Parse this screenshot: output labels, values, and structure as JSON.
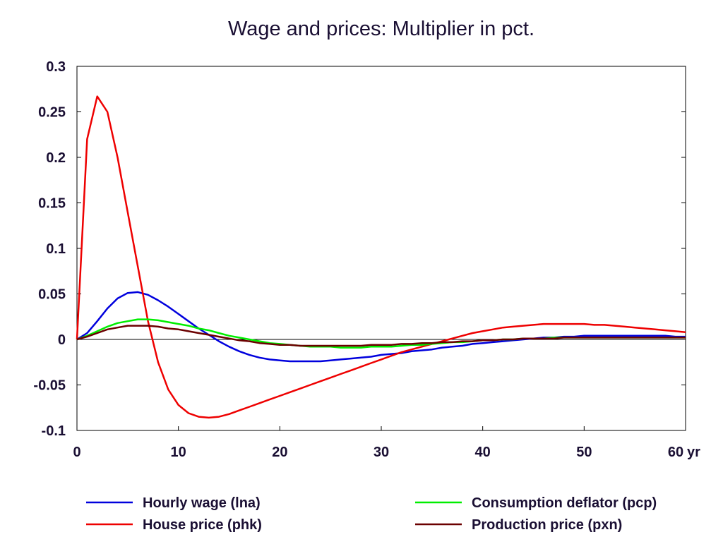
{
  "chart_data": {
    "type": "line",
    "title": "Wage and prices: Multiplier in pct.",
    "x_unit_label": "yr",
    "xlim": [
      0,
      60
    ],
    "ylim": [
      -0.1,
      0.3
    ],
    "x_ticks": [
      0,
      10,
      20,
      30,
      40,
      50,
      60
    ],
    "y_ticks": [
      -0.1,
      -0.05,
      0,
      0.05,
      0.1,
      0.15,
      0.2,
      0.25,
      0.3
    ],
    "y_tick_labels": [
      "-0.1",
      "-0.05",
      "0",
      "0.05",
      "0.1",
      "0.15",
      "0.2",
      "0.25",
      "0.3"
    ],
    "zero_line": true,
    "grid": false,
    "legend_position": "bottom",
    "x": [
      0,
      1,
      2,
      3,
      4,
      5,
      6,
      7,
      8,
      9,
      10,
      11,
      12,
      13,
      14,
      15,
      16,
      17,
      18,
      19,
      20,
      21,
      22,
      23,
      24,
      25,
      26,
      27,
      28,
      29,
      30,
      31,
      32,
      33,
      34,
      35,
      36,
      37,
      38,
      39,
      40,
      41,
      42,
      43,
      44,
      45,
      46,
      47,
      48,
      49,
      50,
      51,
      52,
      53,
      54,
      55,
      56,
      57,
      58,
      59,
      60
    ],
    "series": [
      {
        "name": "Hourly wage (lna)",
        "color": "#0000dd",
        "values": [
          0,
          0.007,
          0.02,
          0.034,
          0.045,
          0.051,
          0.052,
          0.049,
          0.043,
          0.036,
          0.028,
          0.02,
          0.012,
          0.005,
          -0.002,
          -0.008,
          -0.013,
          -0.017,
          -0.02,
          -0.022,
          -0.023,
          -0.024,
          -0.024,
          -0.024,
          -0.024,
          -0.023,
          -0.022,
          -0.021,
          -0.02,
          -0.019,
          -0.017,
          -0.016,
          -0.015,
          -0.013,
          -0.012,
          -0.011,
          -0.009,
          -0.008,
          -0.007,
          -0.005,
          -0.004,
          -0.003,
          -0.002,
          -0.001,
          0,
          0.001,
          0.002,
          0.002,
          0.003,
          0.003,
          0.004,
          0.004,
          0.004,
          0.004,
          0.004,
          0.004,
          0.004,
          0.004,
          0.004,
          0.003,
          0.003
        ]
      },
      {
        "name": "Consumption deflator (pcp)",
        "color": "#00ee00",
        "values": [
          0,
          0.004,
          0.009,
          0.014,
          0.018,
          0.02,
          0.022,
          0.022,
          0.021,
          0.019,
          0.017,
          0.015,
          0.012,
          0.01,
          0.007,
          0.004,
          0.002,
          0,
          -0.002,
          -0.004,
          -0.005,
          -0.006,
          -0.007,
          -0.008,
          -0.008,
          -0.008,
          -0.009,
          -0.009,
          -0.009,
          -0.008,
          -0.008,
          -0.008,
          -0.007,
          -0.006,
          -0.006,
          -0.005,
          -0.004,
          -0.003,
          -0.003,
          -0.002,
          -0.001,
          -0.001,
          0,
          0,
          0.001,
          0.001,
          0.001,
          0.002,
          0.002,
          0.002,
          0.002,
          0.002,
          0.002,
          0.002,
          0.002,
          0.002,
          0.002,
          0.002,
          0.002,
          0.002,
          0.002
        ]
      },
      {
        "name": "House price (phk)",
        "color": "#ee0000",
        "values": [
          0,
          0.22,
          0.267,
          0.25,
          0.2,
          0.14,
          0.08,
          0.02,
          -0.025,
          -0.055,
          -0.072,
          -0.081,
          -0.085,
          -0.086,
          -0.085,
          -0.082,
          -0.078,
          -0.074,
          -0.07,
          -0.066,
          -0.062,
          -0.058,
          -0.054,
          -0.05,
          -0.046,
          -0.042,
          -0.038,
          -0.034,
          -0.03,
          -0.026,
          -0.022,
          -0.018,
          -0.014,
          -0.011,
          -0.008,
          -0.005,
          -0.002,
          0.001,
          0.004,
          0.007,
          0.009,
          0.011,
          0.013,
          0.014,
          0.015,
          0.016,
          0.017,
          0.017,
          0.017,
          0.017,
          0.017,
          0.016,
          0.016,
          0.015,
          0.014,
          0.013,
          0.012,
          0.011,
          0.01,
          0.009,
          0.008
        ]
      },
      {
        "name": "Production price (pxn)",
        "color": "#6b0000",
        "values": [
          0,
          0.003,
          0.007,
          0.011,
          0.013,
          0.015,
          0.015,
          0.015,
          0.014,
          0.012,
          0.011,
          0.009,
          0.007,
          0.005,
          0.003,
          0.001,
          -0.001,
          -0.002,
          -0.004,
          -0.005,
          -0.006,
          -0.006,
          -0.007,
          -0.007,
          -0.007,
          -0.007,
          -0.007,
          -0.007,
          -0.007,
          -0.006,
          -0.006,
          -0.006,
          -0.005,
          -0.005,
          -0.004,
          -0.004,
          -0.003,
          -0.003,
          -0.002,
          -0.002,
          -0.001,
          -0.001,
          0,
          0,
          0.001,
          0.001,
          0.001,
          0.001,
          0.002,
          0.002,
          0.002,
          0.002,
          0.002,
          0.002,
          0.002,
          0.002,
          0.002,
          0.002,
          0.002,
          0.002,
          0.002
        ]
      }
    ],
    "legend": [
      {
        "series": 0,
        "column": 0,
        "row": 0
      },
      {
        "series": 2,
        "column": 0,
        "row": 1
      },
      {
        "series": 1,
        "column": 1,
        "row": 0
      },
      {
        "series": 3,
        "column": 1,
        "row": 1
      }
    ]
  }
}
